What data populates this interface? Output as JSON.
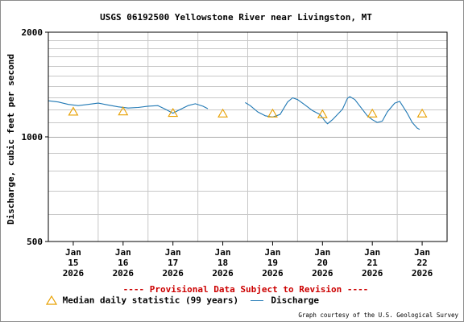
{
  "chart_data": {
    "type": "line",
    "title": "USGS 06192500 Yellowstone River near Livingston, MT",
    "ylabel": "Discharge, cubic feet per second",
    "xlabel": "",
    "y_scale": "log",
    "ylim": [
      500,
      2000
    ],
    "y_ticks": [
      {
        "value": 500,
        "label": "500"
      },
      {
        "value": 1000,
        "label": "1000"
      },
      {
        "value": 2000,
        "label": "2000"
      }
    ],
    "x_ticks": [
      {
        "day": 15,
        "label": [
          "Jan",
          "15",
          "2026"
        ]
      },
      {
        "day": 16,
        "label": [
          "Jan",
          "16",
          "2026"
        ]
      },
      {
        "day": 17,
        "label": [
          "Jan",
          "17",
          "2026"
        ]
      },
      {
        "day": 18,
        "label": [
          "Jan",
          "18",
          "2026"
        ]
      },
      {
        "day": 19,
        "label": [
          "Jan",
          "19",
          "2026"
        ]
      },
      {
        "day": 20,
        "label": [
          "Jan",
          "20",
          "2026"
        ]
      },
      {
        "day": 21,
        "label": [
          "Jan",
          "21",
          "2026"
        ]
      },
      {
        "day": 22,
        "label": [
          "Jan",
          "22",
          "2026"
        ]
      }
    ],
    "grid": true,
    "series": [
      {
        "name": "Discharge",
        "color": "#1f78b4",
        "segments": [
          [
            [
              14.5,
              1270
            ],
            [
              14.7,
              1260
            ],
            [
              14.9,
              1240
            ],
            [
              15.1,
              1230
            ],
            [
              15.3,
              1240
            ],
            [
              15.5,
              1250
            ],
            [
              15.7,
              1235
            ],
            [
              15.9,
              1220
            ],
            [
              16.1,
              1210
            ],
            [
              16.3,
              1215
            ],
            [
              16.5,
              1225
            ],
            [
              16.7,
              1230
            ],
            [
              16.85,
              1200
            ],
            [
              17.0,
              1170
            ],
            [
              17.1,
              1190
            ],
            [
              17.3,
              1230
            ],
            [
              17.45,
              1245
            ],
            [
              17.6,
              1225
            ],
            [
              17.7,
              1205
            ]
          ],
          [
            [
              18.45,
              1255
            ],
            [
              18.55,
              1230
            ],
            [
              18.7,
              1180
            ],
            [
              18.85,
              1150
            ],
            [
              19.0,
              1140
            ],
            [
              19.15,
              1160
            ],
            [
              19.3,
              1260
            ],
            [
              19.4,
              1295
            ],
            [
              19.5,
              1280
            ],
            [
              19.65,
              1235
            ],
            [
              19.8,
              1190
            ],
            [
              19.95,
              1160
            ],
            [
              20.05,
              1110
            ],
            [
              20.1,
              1090
            ],
            [
              20.2,
              1120
            ],
            [
              20.4,
              1200
            ],
            [
              20.5,
              1290
            ],
            [
              20.55,
              1305
            ],
            [
              20.65,
              1280
            ],
            [
              20.8,
              1200
            ],
            [
              20.9,
              1150
            ],
            [
              21.0,
              1120
            ],
            [
              21.1,
              1100
            ],
            [
              21.2,
              1110
            ],
            [
              21.3,
              1180
            ],
            [
              21.45,
              1250
            ],
            [
              21.55,
              1265
            ],
            [
              21.7,
              1170
            ],
            [
              21.8,
              1100
            ],
            [
              21.9,
              1060
            ],
            [
              21.95,
              1050
            ]
          ]
        ]
      },
      {
        "name": "Median daily statistic (99 years)",
        "color": "#e8a000",
        "marker": "triangle",
        "points": [
          [
            15,
            1180
          ],
          [
            16,
            1182
          ],
          [
            17,
            1170
          ],
          [
            18,
            1165
          ],
          [
            19,
            1165
          ],
          [
            20,
            1160
          ],
          [
            21,
            1165
          ],
          [
            22,
            1165
          ]
        ]
      }
    ]
  },
  "legend": {
    "median_label": "Median daily statistic (99 years)",
    "discharge_label": "Discharge"
  },
  "notice": "---- Provisional Data Subject to Revision ----",
  "notice_color": "#cc0000",
  "courtesy": "Graph courtesy of the U.S. Geological Survey"
}
